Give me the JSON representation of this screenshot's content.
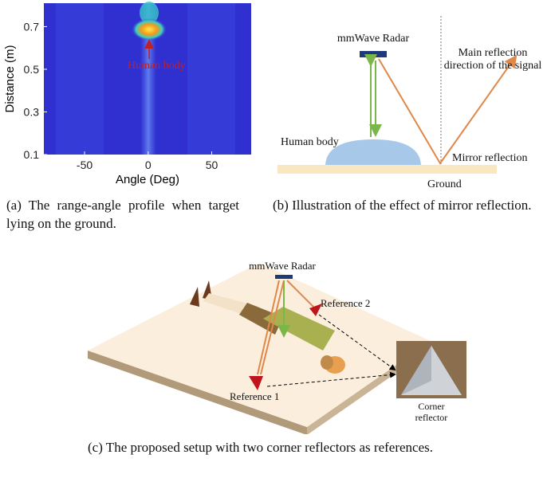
{
  "figure_a": {
    "ylabel": "Distance (m)",
    "xlabel": "Angle (Deg)",
    "annotation": "Human body",
    "xlim": [
      -82,
      81
    ],
    "ylim": [
      0.1,
      0.81
    ],
    "xticks": [
      -50,
      0,
      50
    ],
    "yticks": [
      0.1,
      0.3,
      0.5,
      0.7
    ],
    "caption": "(a) The range-angle profile when target lying on the ground."
  },
  "figure_b": {
    "radar": "mmWave Radar",
    "main_direction": [
      "Main reflection",
      "direction of the signal"
    ],
    "human": "Human body",
    "mirror": "Mirror reflection",
    "ground": "Ground",
    "caption": "(b) Illustration of the effect of mirror reflection."
  },
  "figure_c": {
    "radar": "mmWave Radar",
    "reference_2": "Reference 2",
    "reference_1": "Reference 1",
    "corner": [
      "Corner",
      "reflector"
    ],
    "caption": "(c) The proposed setup with two corner reflectors as references."
  }
}
